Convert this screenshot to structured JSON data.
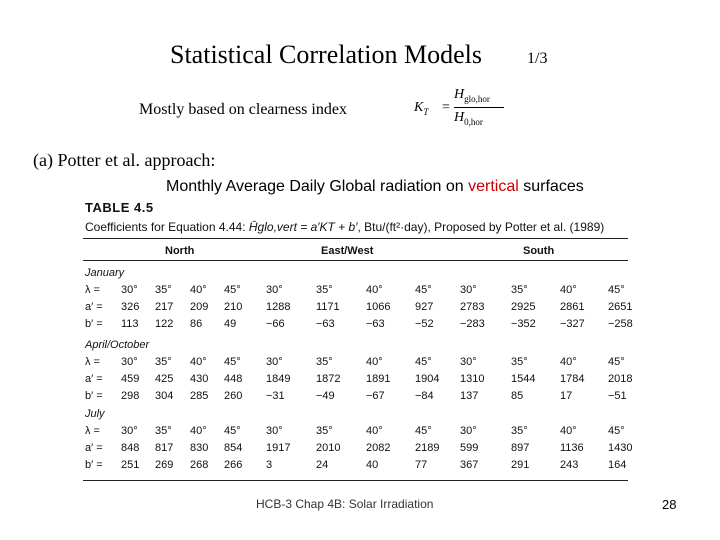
{
  "slide": {
    "title": "Statistical Correlation Models",
    "page_indicator": "1/3",
    "subtitle": "Mostly based on   clearness index",
    "formula": {
      "lhs": "K",
      "lhs_sub": "T",
      "eq": "=",
      "numerator": "H",
      "numerator_sub": "glo,hor",
      "denominator": "H",
      "denominator_sub": "0,hor"
    },
    "section_heading": "(a) Potter et al. approach:",
    "chart_caption_before": "Monthly Average Daily Global radiation on ",
    "chart_caption_accent": "vertical",
    "chart_caption_after": " surfaces",
    "footer": "HCB-3 Chap 4B: Solar Irradiation",
    "slide_number": "28",
    "accent_color": "#cc0000"
  },
  "table": {
    "label": "TABLE 4.5",
    "caption_before": "Coefficients for Equation 4.44: ",
    "caption_equation": "H̄glo,vert = a′KT + b′",
    "caption_after": ", Btu/(ft²·day), Proposed by Potter et al. (1989)",
    "groups": [
      "North",
      "East/West",
      "South"
    ],
    "sections": [
      {
        "season": "January",
        "rows": [
          {
            "label": "λ =",
            "values": [
              "30°",
              "35°",
              "40°",
              "45°",
              "30°",
              "35°",
              "40°",
              "45°",
              "30°",
              "35°",
              "40°",
              "45°"
            ]
          },
          {
            "label": "a′ =",
            "values": [
              "326",
              "217",
              "209",
              "210",
              "1288",
              "1171",
              "1066",
              "927",
              "2783",
              "2925",
              "2861",
              "2651"
            ]
          },
          {
            "label": "b′ =",
            "values": [
              "113",
              "122",
              "86",
              "49",
              "−66",
              "−63",
              "−63",
              "−52",
              "−283",
              "−352",
              "−327",
              "−258"
            ]
          }
        ]
      },
      {
        "season": "April/October",
        "rows": [
          {
            "label": "λ =",
            "values": [
              "30°",
              "35°",
              "40°",
              "45°",
              "30°",
              "35°",
              "40°",
              "45°",
              "30°",
              "35°",
              "40°",
              "45°"
            ]
          },
          {
            "label": "a′ =",
            "values": [
              "459",
              "425",
              "430",
              "448",
              "1849",
              "1872",
              "1891",
              "1904",
              "1310",
              "1544",
              "1784",
              "2018"
            ]
          },
          {
            "label": "b′ =",
            "values": [
              "298",
              "304",
              "285",
              "260",
              "−31",
              "−49",
              "−67",
              "−84",
              "137",
              "85",
              "17",
              "−51"
            ]
          }
        ]
      },
      {
        "season": "July",
        "rows": [
          {
            "label": "λ =",
            "values": [
              "30°",
              "35°",
              "40°",
              "45°",
              "30°",
              "35°",
              "40°",
              "45°",
              "30°",
              "35°",
              "40°",
              "45°"
            ]
          },
          {
            "label": "a′ =",
            "values": [
              "848",
              "817",
              "830",
              "854",
              "1917",
              "2010",
              "2082",
              "2189",
              "599",
              "897",
              "1136",
              "1430"
            ]
          },
          {
            "label": "b′ =",
            "values": [
              "251",
              "269",
              "268",
              "266",
              "3",
              "24",
              "40",
              "77",
              "367",
              "291",
              "243",
              "164"
            ]
          }
        ]
      }
    ]
  }
}
